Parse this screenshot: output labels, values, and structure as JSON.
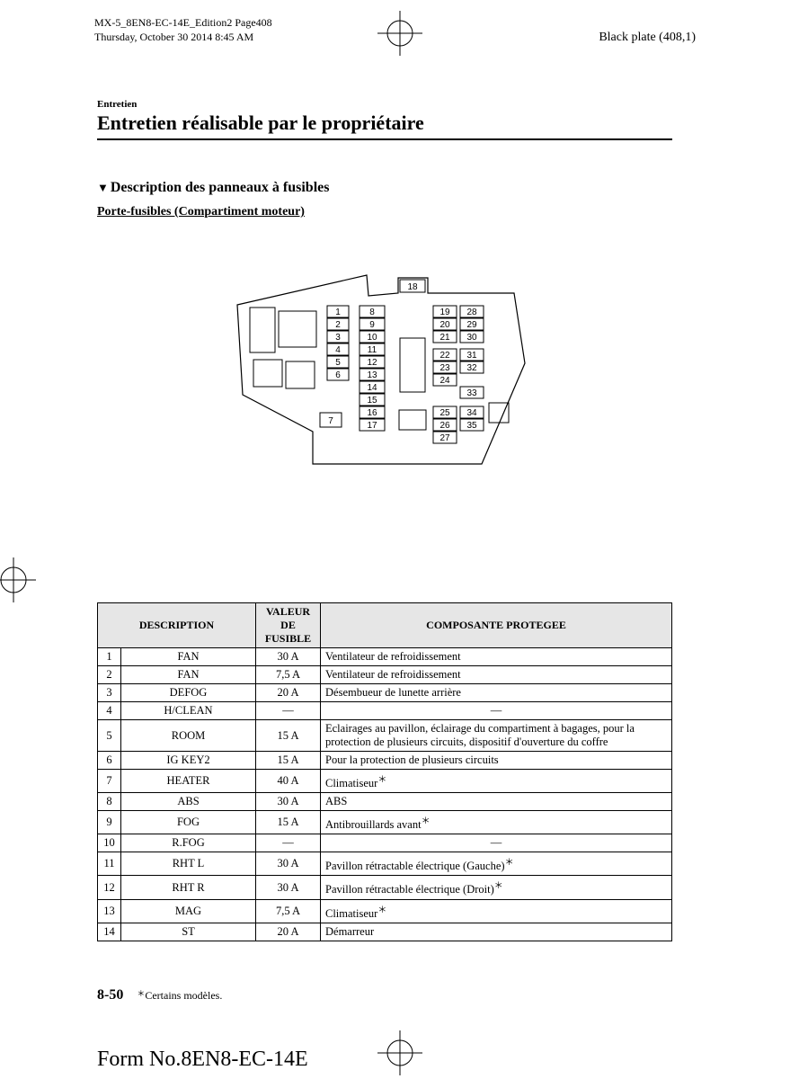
{
  "meta": {
    "line1": "MX-5_8EN8-EC-14E_Edition2 Page408",
    "line2": "Thursday, October 30 2014 8:45 AM",
    "black_plate": "Black plate (408,1)"
  },
  "section": {
    "label": "Entretien",
    "title": "Entretien réalisable par le propriétaire",
    "desc_title": "Description des panneaux à fusibles",
    "sub_title": "Porte-fusibles (Compartiment moteur)"
  },
  "diagram": {
    "top_label": "18",
    "col1": [
      "1",
      "2",
      "3",
      "4",
      "5",
      "6"
    ],
    "col1b": [
      "7"
    ],
    "col2": [
      "8",
      "9",
      "10",
      "11",
      "12",
      "13",
      "14",
      "15",
      "16",
      "17"
    ],
    "col3a": [
      "19",
      "20",
      "21"
    ],
    "col3b": [
      "22",
      "23",
      "24"
    ],
    "col3c": [
      "25",
      "26",
      "27"
    ],
    "col4a": [
      "28",
      "29",
      "30"
    ],
    "col4b": [
      "31",
      "32"
    ],
    "col4c": [
      "33"
    ],
    "col4d": [
      "34",
      "35"
    ]
  },
  "table": {
    "headers": {
      "description": "DESCRIPTION",
      "valeur": "VALEUR DE FUSIBLE",
      "composante": "COMPOSANTE PROTEGEE"
    },
    "rows": [
      {
        "n": "1",
        "d": "FAN",
        "v": "30 A",
        "c": "Ventilateur de refroidissement",
        "star": false,
        "dash": false
      },
      {
        "n": "2",
        "d": "FAN",
        "v": "7,5 A",
        "c": "Ventilateur de refroidissement",
        "star": false,
        "dash": false
      },
      {
        "n": "3",
        "d": "DEFOG",
        "v": "20 A",
        "c": "Désembueur de lunette arrière",
        "star": false,
        "dash": false
      },
      {
        "n": "4",
        "d": "H/CLEAN",
        "v": "―",
        "c": "―",
        "star": false,
        "dash": true
      },
      {
        "n": "5",
        "d": "ROOM",
        "v": "15 A",
        "c": "Eclairages au pavillon, éclairage du compartiment à bagages, pour la protection de plusieurs circuits, dispositif d'ouverture du coffre",
        "star": false,
        "dash": false
      },
      {
        "n": "6",
        "d": "IG KEY2",
        "v": "15 A",
        "c": "Pour la protection de plusieurs circuits",
        "star": false,
        "dash": false
      },
      {
        "n": "7",
        "d": "HEATER",
        "v": "40 A",
        "c": "Climatiseur",
        "star": true,
        "dash": false
      },
      {
        "n": "8",
        "d": "ABS",
        "v": "30 A",
        "c": "ABS",
        "star": false,
        "dash": false
      },
      {
        "n": "9",
        "d": "FOG",
        "v": "15 A",
        "c": "Antibrouillards avant",
        "star": true,
        "dash": false
      },
      {
        "n": "10",
        "d": "R.FOG",
        "v": "―",
        "c": "―",
        "star": false,
        "dash": true
      },
      {
        "n": "11",
        "d": "RHT L",
        "v": "30 A",
        "c": "Pavillon rétractable électrique (Gauche)",
        "star": true,
        "dash": false
      },
      {
        "n": "12",
        "d": "RHT R",
        "v": "30 A",
        "c": "Pavillon rétractable électrique (Droit)",
        "star": true,
        "dash": false
      },
      {
        "n": "13",
        "d": "MAG",
        "v": "7,5 A",
        "c": "Climatiseur",
        "star": true,
        "dash": false
      },
      {
        "n": "14",
        "d": "ST",
        "v": "20 A",
        "c": "Démarreur",
        "star": false,
        "dash": false
      }
    ]
  },
  "footer": {
    "page": "8-50",
    "note": "Certains modèles."
  },
  "form_no": "Form No.8EN8-EC-14E"
}
